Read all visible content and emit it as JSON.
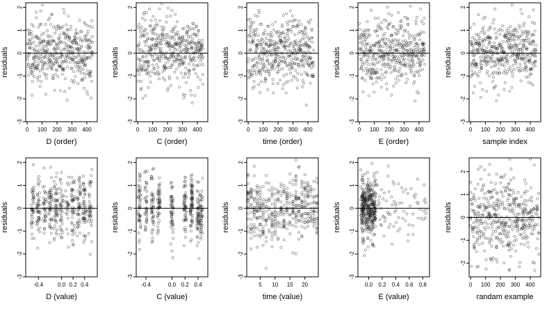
{
  "chart_data": [
    {
      "type": "scatter",
      "xlabel": "D (order)",
      "ylabel": "residuals",
      "xlim": [
        -10,
        470
      ],
      "ylim": [
        -3,
        2.2
      ],
      "xticks": [
        "0",
        "100",
        "200",
        "300",
        "400"
      ],
      "yticks": [
        "-3",
        "-2",
        "-1",
        "0",
        "1",
        "2"
      ],
      "reference_line": 0,
      "x_kind": "order",
      "seed": 11
    },
    {
      "type": "scatter",
      "xlabel": "C (order)",
      "ylabel": "residuals",
      "xlim": [
        -10,
        470
      ],
      "ylim": [
        -3,
        2.2
      ],
      "xticks": [
        "0",
        "100",
        "200",
        "300",
        "400"
      ],
      "yticks": [
        "-3",
        "-2",
        "-1",
        "0",
        "1",
        "2"
      ],
      "reference_line": 0,
      "x_kind": "order",
      "seed": 23
    },
    {
      "type": "scatter",
      "xlabel": "time (order)",
      "ylabel": "residuals",
      "xlim": [
        -10,
        470
      ],
      "ylim": [
        -3,
        2.2
      ],
      "xticks": [
        "0",
        "100",
        "200",
        "300",
        "400"
      ],
      "yticks": [
        "-3",
        "-2",
        "-1",
        "0",
        "1",
        "2"
      ],
      "reference_line": 0,
      "x_kind": "order",
      "seed": 37
    },
    {
      "type": "scatter",
      "xlabel": "E (order)",
      "ylabel": "residuals",
      "xlim": [
        -10,
        470
      ],
      "ylim": [
        -3,
        2.2
      ],
      "xticks": [
        "0",
        "100",
        "200",
        "300",
        "400"
      ],
      "yticks": [
        "-3",
        "-2",
        "-1",
        "0",
        "1",
        "2"
      ],
      "reference_line": 0,
      "x_kind": "order",
      "seed": 41
    },
    {
      "type": "scatter",
      "xlabel": "sample index",
      "ylabel": "residuals",
      "xlim": [
        -10,
        470
      ],
      "ylim": [
        -3,
        2.2
      ],
      "xticks": [
        "0",
        "100",
        "200",
        "300",
        "400"
      ],
      "yticks": [
        "-3",
        "-2",
        "-1",
        "0",
        "1",
        "2"
      ],
      "reference_line": 0,
      "x_kind": "order",
      "seed": 53
    },
    {
      "type": "scatter",
      "xlabel": "D (value)",
      "ylabel": "residuals",
      "xlim": [
        -0.62,
        0.62
      ],
      "ylim": [
        -3,
        2.2
      ],
      "xticks": [
        "-0.4",
        "0.0",
        "0.2",
        "0.4"
      ],
      "xtick_values": [
        -0.4,
        0.0,
        0.2,
        0.4
      ],
      "yticks": [
        "-3",
        "-2",
        "-1",
        "0",
        "1",
        "2"
      ],
      "reference_line": 0,
      "x_kind": "value_D",
      "seed": 61
    },
    {
      "type": "scatter",
      "xlabel": "C (value)",
      "ylabel": "residuals",
      "xlim": [
        -0.55,
        0.55
      ],
      "ylim": [
        -3,
        2.2
      ],
      "xticks": [
        "-0.4",
        "0.0",
        "0.2",
        "0.4"
      ],
      "xtick_values": [
        -0.4,
        0.0,
        0.2,
        0.4
      ],
      "yticks": [
        "-3",
        "-2",
        "-1",
        "0",
        "1",
        "2"
      ],
      "reference_line": 0,
      "x_kind": "value_C",
      "seed": 71
    },
    {
      "type": "scatter",
      "xlabel": "time (value)",
      "ylabel": "residuals",
      "xlim": [
        0.5,
        24.5
      ],
      "ylim": [
        -3,
        2.2
      ],
      "xticks": [
        "5",
        "10",
        "15",
        "20"
      ],
      "xtick_values": [
        5,
        10,
        15,
        20
      ],
      "yticks": [
        "-3",
        "-2",
        "-1",
        "0",
        "1",
        "2"
      ],
      "reference_line": 0,
      "x_kind": "value_time",
      "seed": 83
    },
    {
      "type": "scatter",
      "xlabel": "E (value)",
      "ylabel": "residuals",
      "xlim": [
        -0.16,
        0.9
      ],
      "ylim": [
        -3,
        2.2
      ],
      "xticks": [
        "0.0",
        "0.2",
        "0.4",
        "0.6",
        "0.8"
      ],
      "xtick_values": [
        0.0,
        0.2,
        0.4,
        0.6,
        0.8
      ],
      "yticks": [
        "-3",
        "-2",
        "-1",
        "0",
        "1",
        "2"
      ],
      "reference_line": 0,
      "x_kind": "value_E",
      "seed": 97
    },
    {
      "type": "scatter",
      "xlabel": "randam example",
      "ylabel": "residuals",
      "xlim": [
        -10,
        470
      ],
      "ylim": [
        -2.6,
        2.6
      ],
      "xticks": [
        "0",
        "100",
        "200",
        "300",
        "400"
      ],
      "yticks": [
        "-2",
        "-1",
        "0",
        "1",
        "2"
      ],
      "reference_line": 0,
      "x_kind": "random",
      "seed": 101
    }
  ]
}
